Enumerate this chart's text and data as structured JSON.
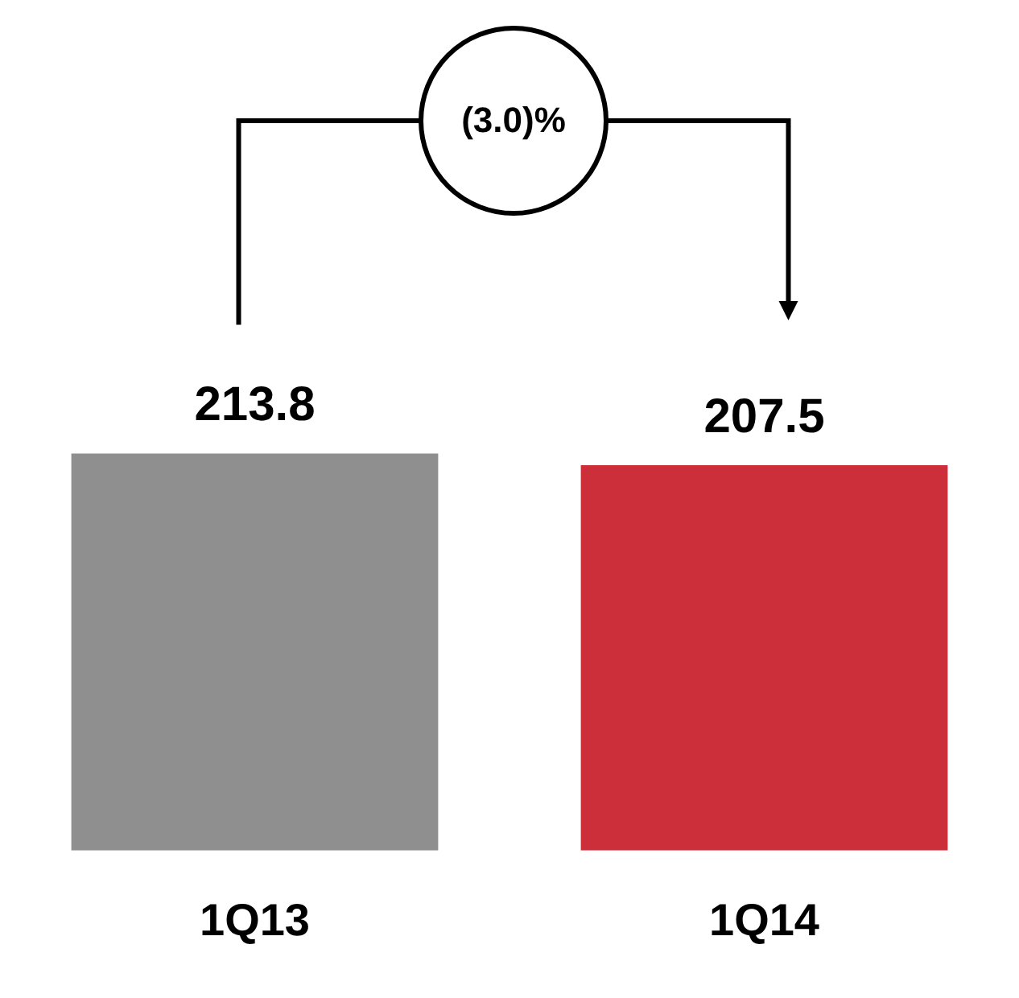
{
  "chart_data": {
    "type": "bar",
    "categories": [
      "1Q13",
      "1Q14"
    ],
    "values": [
      213.8,
      207.5
    ],
    "colors": [
      "#8f8f8f",
      "#cc2f3a"
    ],
    "data_labels": true,
    "grid": false,
    "legend": false,
    "annotations": [
      "(3.0)%"
    ]
  }
}
